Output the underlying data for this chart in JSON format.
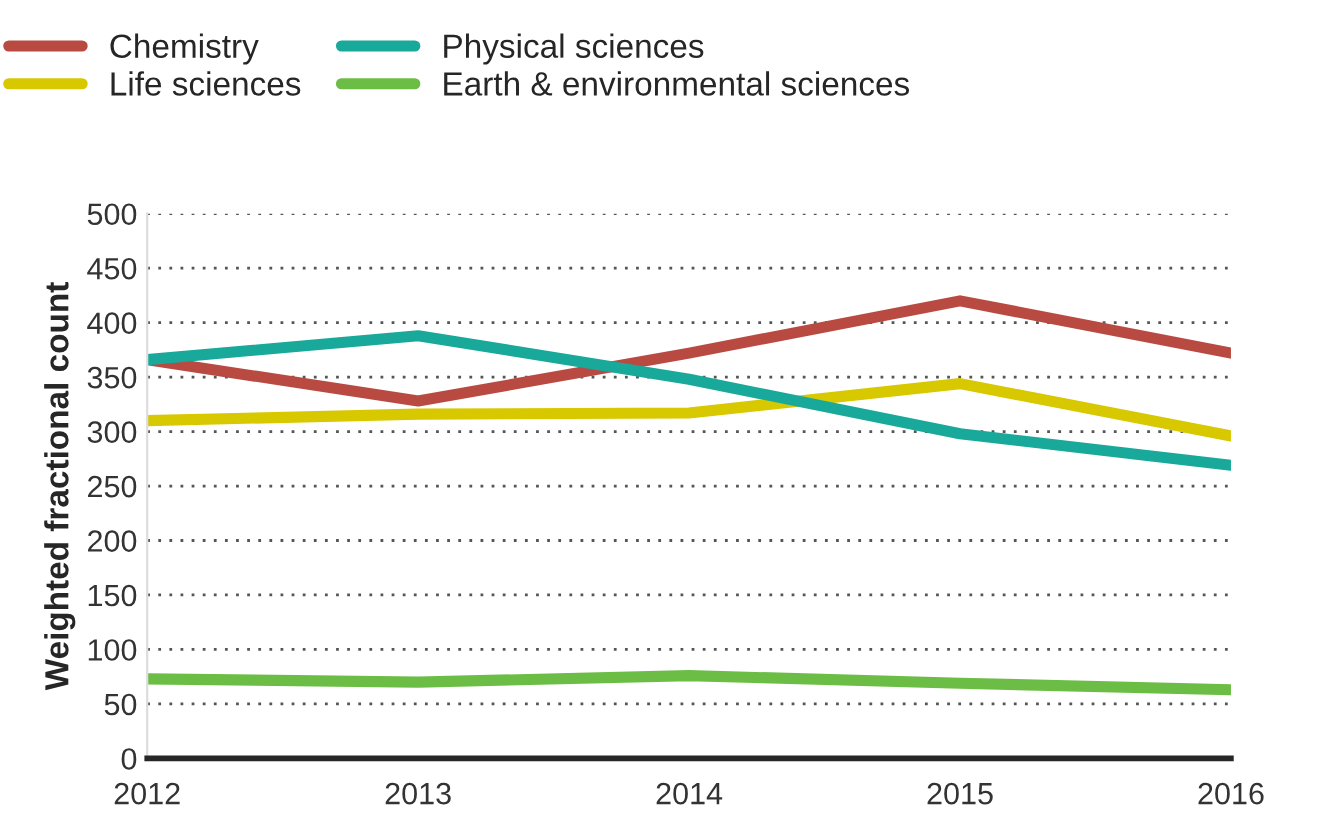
{
  "chart_data": {
    "type": "line",
    "ylabel": "Weighted fractional count",
    "x": [
      2012,
      2013,
      2014,
      2015,
      2016
    ],
    "series": [
      {
        "name": "Chemistry",
        "color": "#b94a42",
        "values": [
          366,
          328,
          372,
          420,
          372
        ]
      },
      {
        "name": "Life sciences",
        "color": "#d8c800",
        "values": [
          310,
          316,
          317,
          344,
          296
        ]
      },
      {
        "name": "Physical sciences",
        "color": "#18a99a",
        "values": [
          366,
          388,
          348,
          298,
          269
        ]
      },
      {
        "name": "Earth & environmental sciences",
        "color": "#6cbd45",
        "values": [
          73,
          70,
          76,
          69,
          63
        ]
      }
    ],
    "xlim": [
      2012,
      2016
    ],
    "xticks": [
      2012,
      2013,
      2014,
      2015,
      2016
    ],
    "ylim": [
      0,
      500
    ],
    "yticks": [
      0,
      50,
      100,
      150,
      200,
      250,
      300,
      350,
      400,
      450,
      500
    ],
    "grid": "y",
    "legend": "top left",
    "marker": "none",
    "line_style": "solid"
  }
}
